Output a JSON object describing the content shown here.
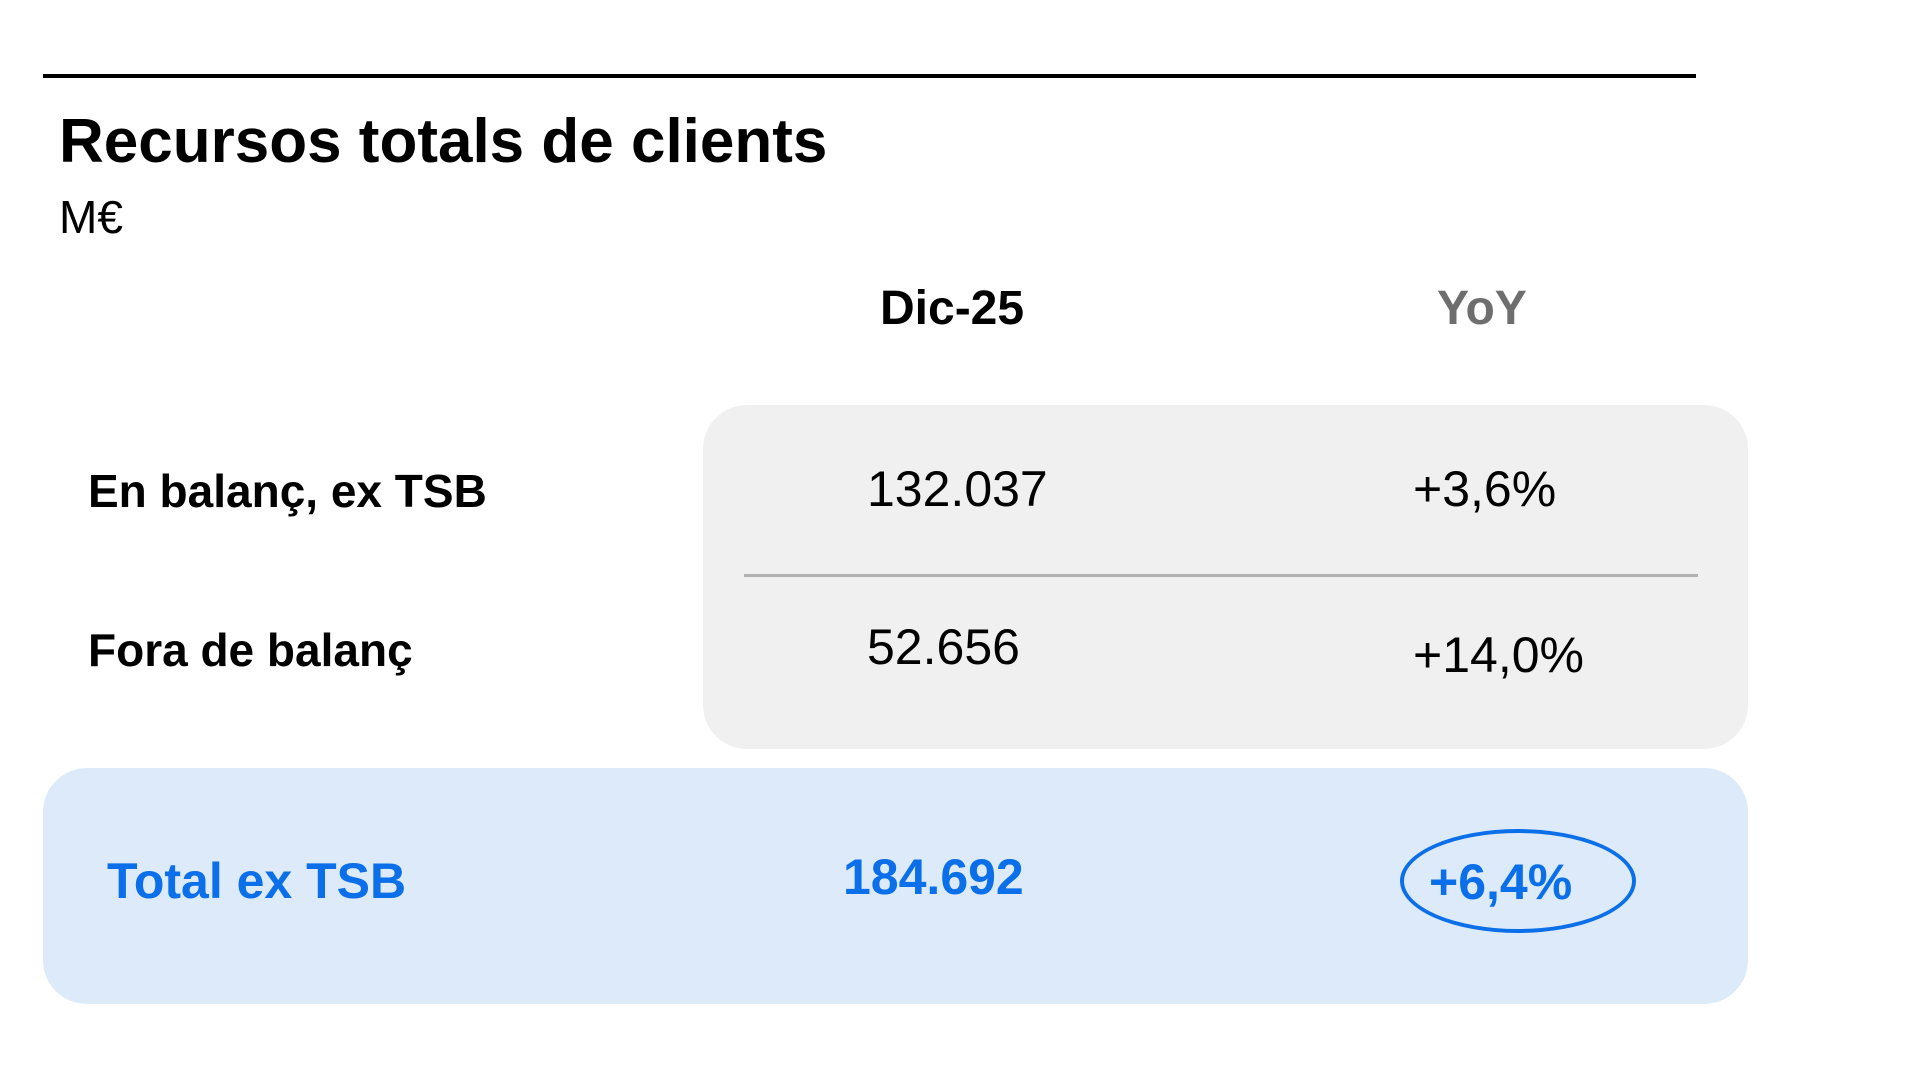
{
  "header": {
    "title": "Recursos totals de clients",
    "unit": "M€"
  },
  "columns": {
    "period": "Dic-25",
    "change": "YoY"
  },
  "rows": [
    {
      "label": "En balanç, ex TSB",
      "value": "132.037",
      "change": "+3,6%"
    },
    {
      "label": "Fora de balanç",
      "value": "52.656",
      "change": "+14,0%"
    }
  ],
  "total": {
    "label": "Total ex TSB",
    "value": "184.692",
    "change": "+6,4%"
  },
  "colors": {
    "accent": "#0a6fe8",
    "total_background": "#dceaf9",
    "panel_background": "#f0f0f0",
    "muted_header": "#6e6e6e"
  }
}
